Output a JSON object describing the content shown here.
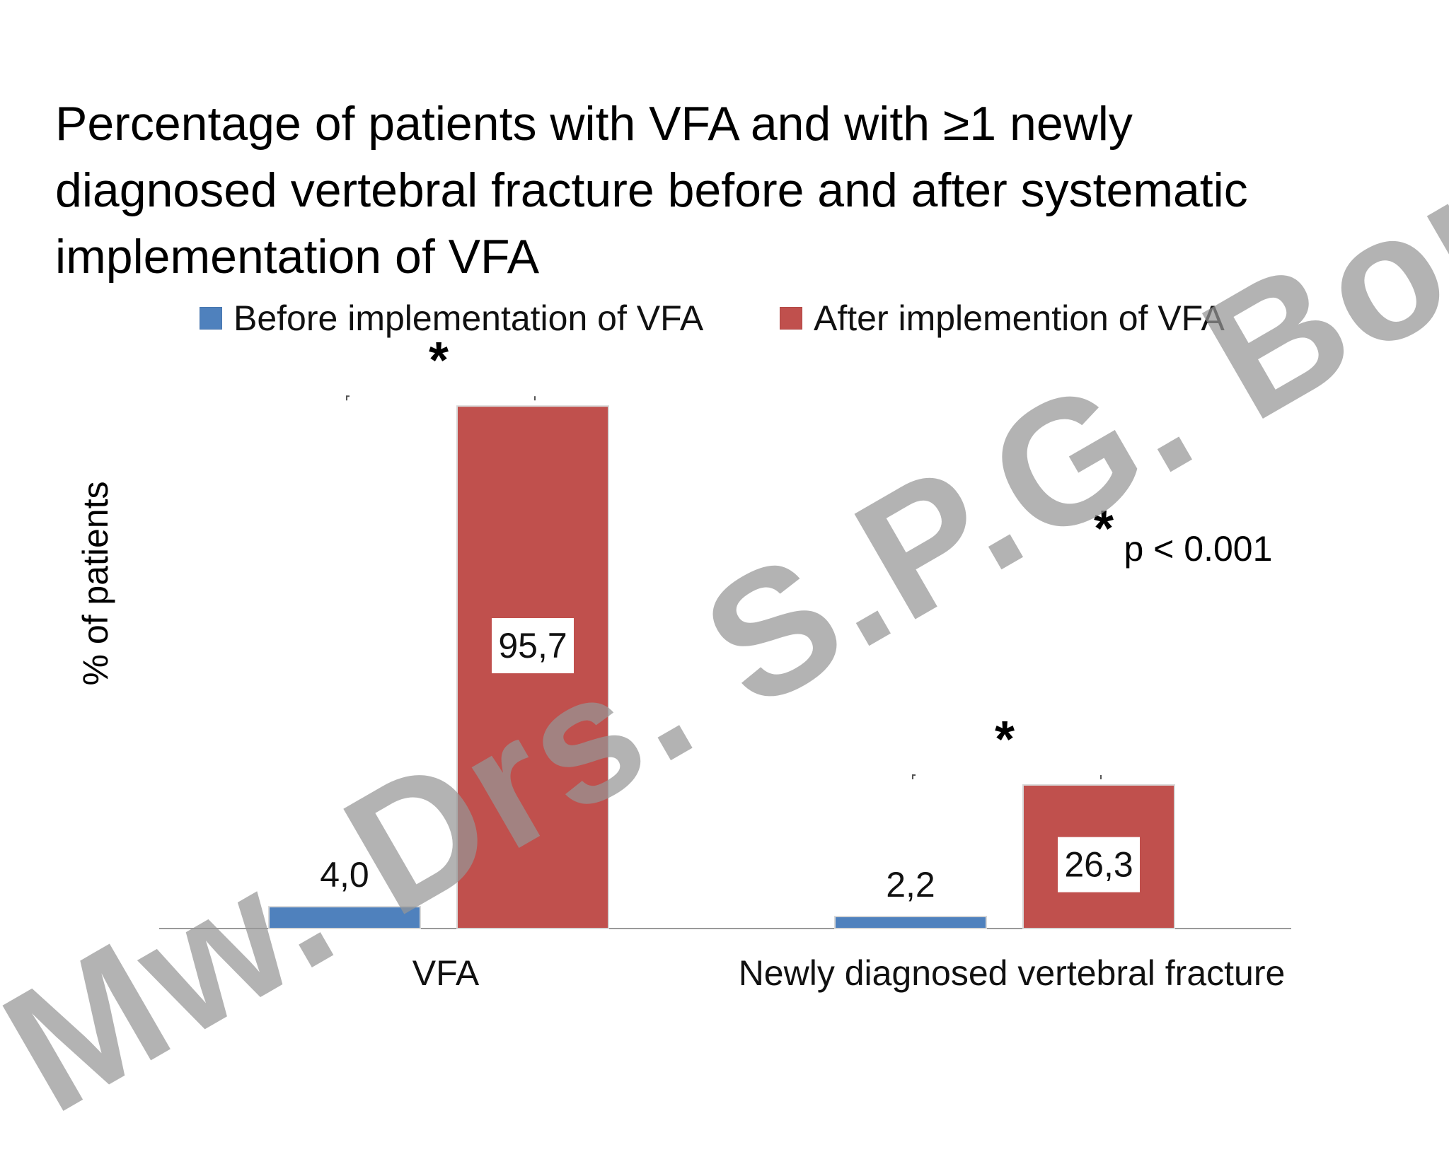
{
  "title_lines": [
    "Percentage of patients with VFA and with ≥1 newly",
    "diagnosed vertebral fracture before and after systematic",
    "implementation of VFA"
  ],
  "chart_data": {
    "type": "bar",
    "categories": [
      "VFA",
      "Newly diagnosed vertebral fracture"
    ],
    "series": [
      {
        "name": "Before implementation of VFA",
        "color": "#4f81bd",
        "values": [
          4.0,
          2.2
        ],
        "labels": [
          "4,0",
          "2,2"
        ]
      },
      {
        "name": "After implemention of VFA",
        "color": "#c0504d",
        "values": [
          95.7,
          26.3
        ],
        "labels": [
          "95,7",
          "26,3"
        ]
      }
    ],
    "ylabel": "% of patients",
    "ylim": [
      0,
      100
    ],
    "grid": false,
    "legend_position": "top",
    "significance_marker": "*",
    "significance_note": "p < 0.001"
  },
  "watermark": "Mw. Drs. S.P.G. Bours"
}
